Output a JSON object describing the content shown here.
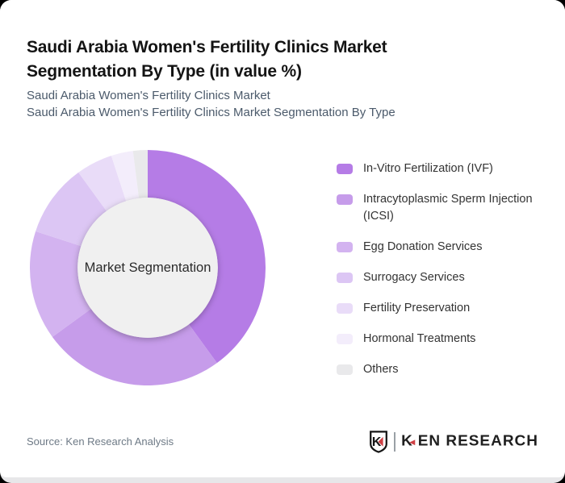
{
  "page": {
    "background": "#000000",
    "card_background": "#ffffff",
    "bottom_strip_color": "#e7e7e9"
  },
  "header": {
    "title": "Saudi Arabia Women's Fertility Clinics Market Segmentation By Type (in value %)",
    "subtitle_line1": "Saudi Arabia Women's Fertility Clinics Market",
    "subtitle_line2": "Saudi Arabia Women's Fertility Clinics Market Segmentation By Type"
  },
  "chart_data": {
    "type": "pie",
    "variant": "donut",
    "title": "Saudi Arabia Women's Fertility Clinics Market Segmentation By Type (in value %)",
    "center_label": "Market Segmentation",
    "unit": "%",
    "start_angle": 0,
    "direction": "clockwise",
    "legend_position": "right",
    "value_labels_shown": false,
    "categories": [
      "In-Vitro Fertilization (IVF)",
      "Intracytoplasmic Sperm Injection (ICSI)",
      "Egg Donation Services",
      "Surrogacy Services",
      "Fertility Preservation",
      "Hormonal Treatments",
      "Others"
    ],
    "values": [
      40,
      25,
      15,
      10,
      5,
      3,
      2
    ],
    "colors": [
      "#b57ce6",
      "#c69cea",
      "#d3b3f0",
      "#dcc6f4",
      "#e9dcf8",
      "#f3edfb",
      "#e9e9eb"
    ],
    "hole_color": "#f0f0f0"
  },
  "footer": {
    "source": "Source: Ken Research Analysis",
    "logo": {
      "shield_letter": "K",
      "word_k": "K",
      "triangle_icon": "◄",
      "word_rest": "EN RESEARCH",
      "accent_color": "#cf4044"
    }
  }
}
